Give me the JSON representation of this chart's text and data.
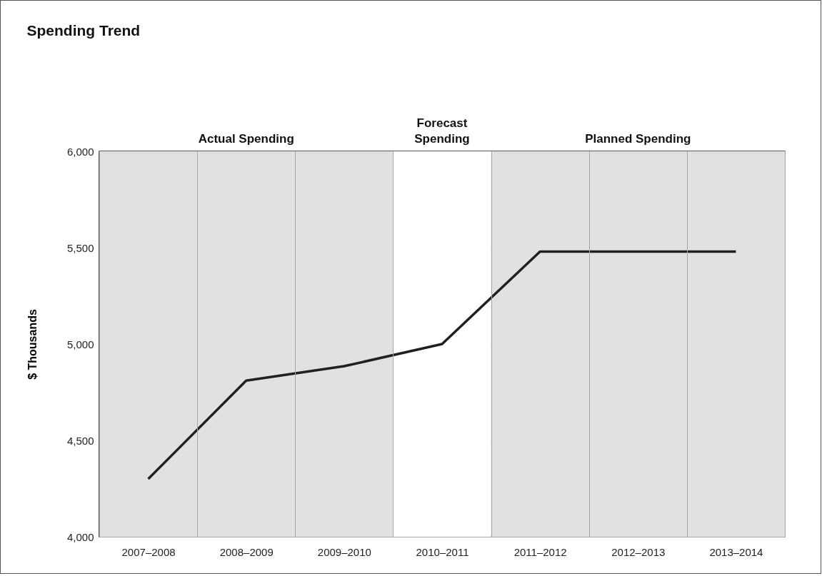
{
  "chart_data": {
    "type": "line",
    "title": "Spending Trend",
    "ylabel": "$ Thousands",
    "categories": [
      "2007–2008",
      "2008–2009",
      "2009–2010",
      "2010–2011",
      "2011–2012",
      "2012–2013",
      "2013–2014"
    ],
    "series": [
      {
        "color": "#231f20",
        "values": [
          4300,
          4810,
          4885,
          5000,
          5480,
          5480,
          5480
        ]
      }
    ],
    "ylim": [
      4000,
      6000
    ],
    "yticks": [
      {
        "value": 4000,
        "label": "4,000"
      },
      {
        "value": 4500,
        "label": "4,500"
      },
      {
        "value": 5000,
        "label": "5,000"
      },
      {
        "value": 5500,
        "label": "5,500"
      },
      {
        "value": 6000,
        "label": "6,000"
      }
    ],
    "bands": [
      {
        "axis": "x",
        "from": "2007–2008",
        "to": "2009–2010",
        "label": "Actual Spending",
        "color": "#e1e1e3"
      },
      {
        "axis": "x",
        "from": "2010–2011",
        "to": "2010–2011",
        "label": "Forecast\nSpending",
        "color": "#ffffff"
      },
      {
        "axis": "x",
        "from": "2011–2012",
        "to": "2013–2014",
        "label": "Planned Spending",
        "color": "#e1e1e3"
      }
    ],
    "grid": true,
    "marker": "none",
    "line_style": "solid"
  }
}
